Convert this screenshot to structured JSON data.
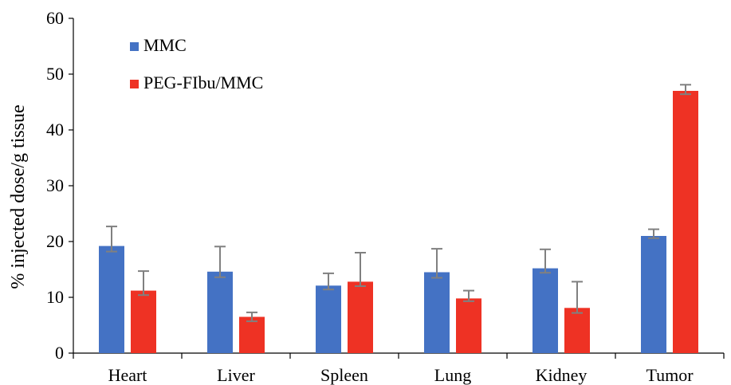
{
  "chart_data": {
    "type": "bar",
    "title": "",
    "xlabel": "",
    "ylabel": "% injected dose/g tissue",
    "ylim": [
      0,
      60
    ],
    "yticks": [
      0,
      10,
      20,
      30,
      40,
      50,
      60
    ],
    "grid": false,
    "legend_position": "top-left",
    "categories": [
      "Heart",
      "Liver",
      "Spleen",
      "Lung",
      "Kidney",
      "Tumor"
    ],
    "series": [
      {
        "name": "MMC",
        "color": "#4472c4",
        "values": [
          19.2,
          14.6,
          12.1,
          14.5,
          15.2,
          21.0
        ],
        "error_plus": [
          3.5,
          4.5,
          2.2,
          4.2,
          3.4,
          1.2
        ],
        "error_minus": [
          1.0,
          1.0,
          0.7,
          1.0,
          0.8,
          0.4
        ]
      },
      {
        "name": "PEG-FIbu/MMC",
        "color": "#ee3224",
        "values": [
          11.2,
          6.5,
          12.8,
          9.8,
          8.1,
          47.0
        ],
        "error_plus": [
          3.5,
          0.8,
          5.2,
          1.4,
          4.7,
          1.1
        ],
        "error_minus": [
          0.8,
          0.8,
          0.8,
          0.5,
          0.9,
          0.6
        ]
      }
    ],
    "error_bar_color": "#808080",
    "axis_color": "#000000"
  }
}
